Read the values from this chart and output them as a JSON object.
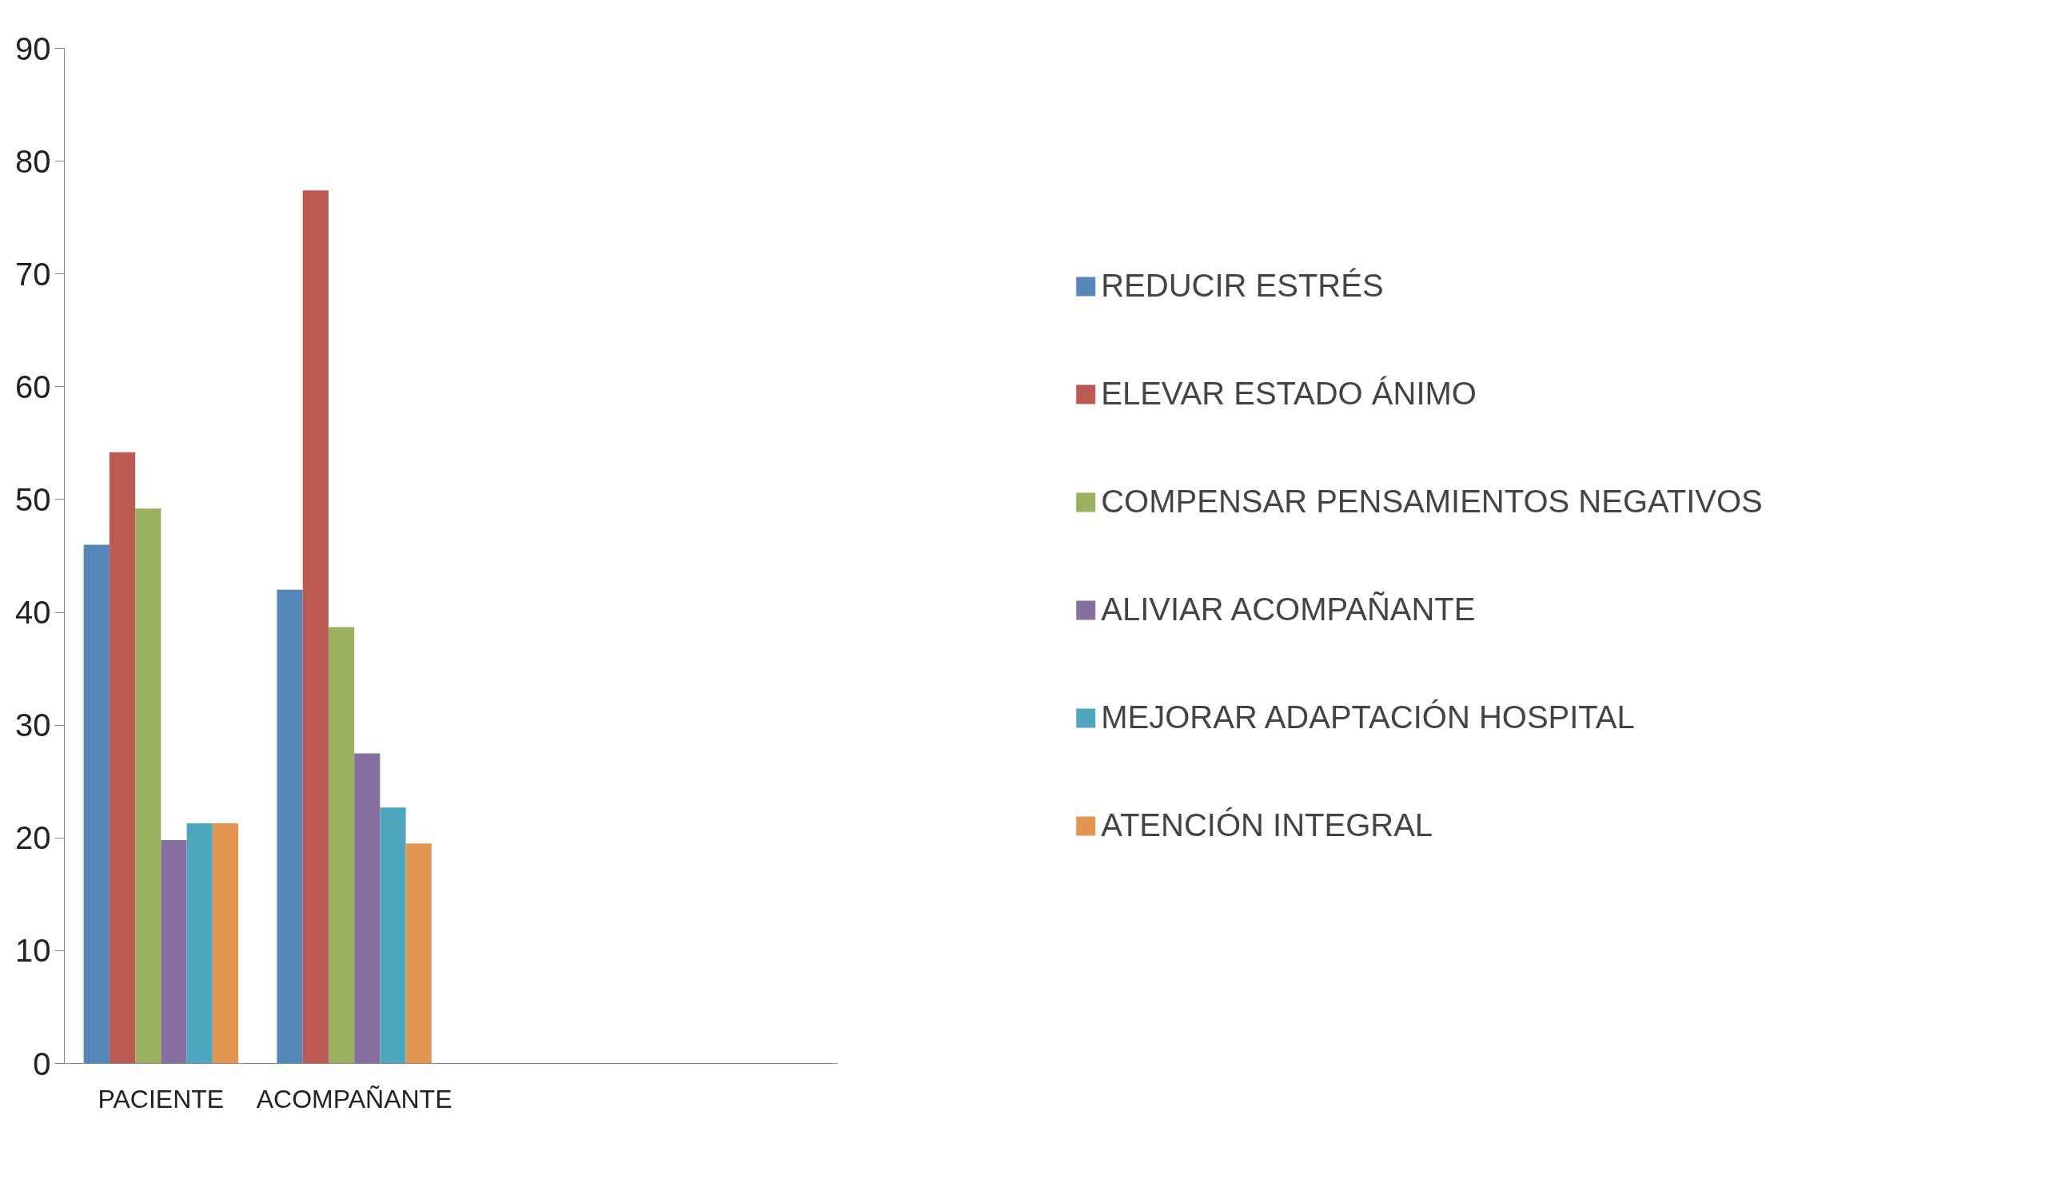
{
  "chart_data": {
    "type": "bar",
    "categories": [
      "PACIENTE",
      "ACOMPAÑANTE",
      null,
      null
    ],
    "series": [
      {
        "name": "REDUCIR ESTRÉS",
        "color": "#5586b8",
        "values": [
          46,
          42,
          null,
          null
        ]
      },
      {
        "name": "ELEVAR ESTADO ÁNIMO",
        "color": "#bb5a52",
        "values": [
          54.2,
          77.4,
          null,
          null
        ]
      },
      {
        "name": "COMPENSAR PENSAMIENTOS NEGATIVOS",
        "color": "#9bb05e",
        "values": [
          49.2,
          38.7,
          null,
          null
        ]
      },
      {
        "name": "ALIVIAR ACOMPAÑANTE",
        "color": "#8670a0",
        "values": [
          19.8,
          27.5,
          null,
          null
        ]
      },
      {
        "name": "MEJORAR ADAPTACIÓN HOSPITAL",
        "color": "#4fa7bf",
        "values": [
          21.3,
          22.7,
          null,
          null
        ]
      },
      {
        "name": "ATENCIÓN INTEGRAL",
        "color": "#e1954e",
        "values": [
          21.3,
          19.5,
          null,
          null
        ]
      }
    ],
    "ylim": [
      0,
      90
    ],
    "yticks": [
      0,
      10,
      20,
      30,
      40,
      50,
      60,
      70,
      80,
      90
    ],
    "grid": false,
    "legend": "right"
  }
}
